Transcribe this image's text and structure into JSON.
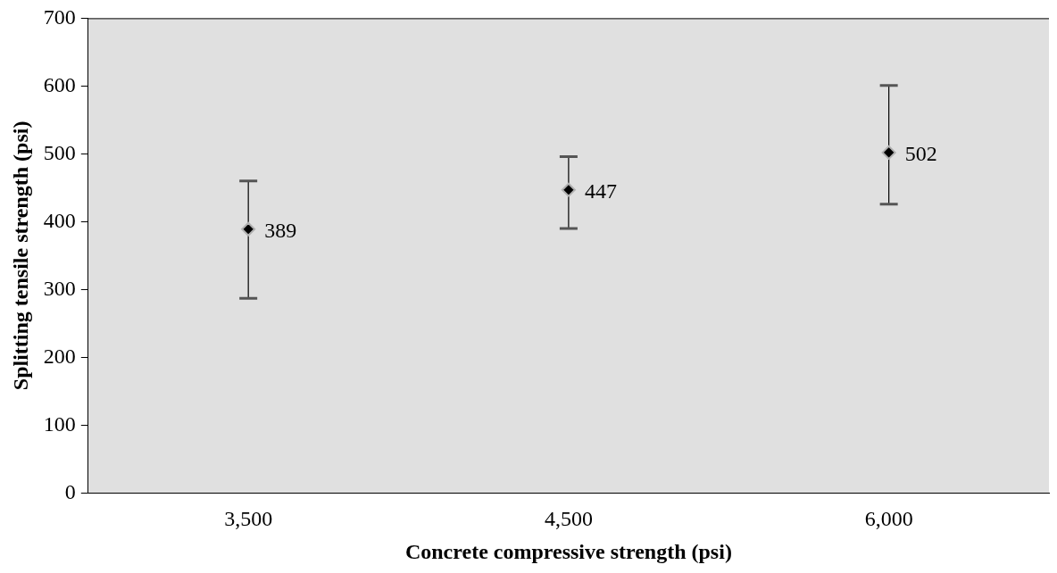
{
  "chart_data": {
    "type": "scatter",
    "xlabel": "Concrete compressive strength (psi)",
    "ylabel": "Splitting tensile strength (psi)",
    "categories": [
      "3,500",
      "4,500",
      "6,000"
    ],
    "series": [
      {
        "color": "#000000",
        "values": [
          389,
          447,
          502
        ],
        "errors": [
          [
            287,
            460
          ],
          [
            390,
            496
          ],
          [
            426,
            601
          ]
        ]
      }
    ],
    "ylim": [
      0,
      700
    ],
    "yticks": [
      0,
      100,
      200,
      300,
      400,
      500,
      600,
      700
    ],
    "grid": false,
    "legend": false,
    "marker": "diamond",
    "data_labels": true
  }
}
